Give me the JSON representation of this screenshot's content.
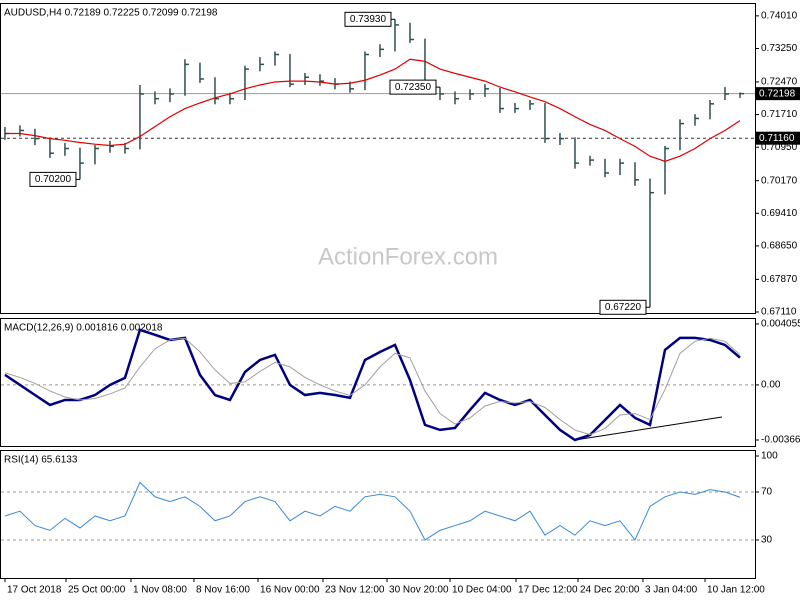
{
  "chart_data": [
    {
      "type": "ohlc",
      "title": "AUDUSD,H4  0.72189 0.72225 0.72099 0.72198",
      "watermark": "ActionForex.com",
      "color": "#2f4f4f",
      "xlim": [
        -0.33,
        50
      ],
      "ylim": [
        0.67087,
        0.7431
      ],
      "yticks": [
        {
          "value": 0.7401,
          "label": "0.74010"
        },
        {
          "value": 0.7325,
          "label": "0.73250"
        },
        {
          "value": 0.7247,
          "label": "0.72470"
        },
        {
          "value": 0.7171,
          "label": "0.71710"
        },
        {
          "value": 0.7095,
          "label": "0.70950"
        },
        {
          "value": 0.7017,
          "label": "0.70170"
        },
        {
          "value": 0.6941,
          "label": "0.69410"
        },
        {
          "value": 0.6865,
          "label": "0.68650"
        },
        {
          "value": 0.6787,
          "label": "0.67870"
        },
        {
          "value": 0.6711,
          "label": "0.67110"
        }
      ],
      "high": [
        0.7142,
        0.7146,
        0.7138,
        0.7118,
        0.7105,
        0.7094,
        0.71,
        0.711,
        0.7105,
        0.724,
        0.7225,
        0.7232,
        0.73,
        0.7292,
        0.7258,
        0.7222,
        0.7285,
        0.7305,
        0.7318,
        0.7312,
        0.7268,
        0.7265,
        0.7256,
        0.7248,
        0.7318,
        0.7335,
        0.7393,
        0.7385,
        0.7348,
        0.7235,
        0.7225,
        0.723,
        0.7242,
        0.7233,
        0.7198,
        0.7205,
        0.7198,
        0.7128,
        0.7118,
        0.7075,
        0.7068,
        0.7068,
        0.706,
        0.7022,
        0.7098,
        0.716,
        0.7172,
        0.7205,
        0.7235,
        0.72225
      ],
      "low": [
        0.7112,
        0.712,
        0.71,
        0.707,
        0.7075,
        0.702,
        0.7055,
        0.7082,
        0.708,
        0.709,
        0.7195,
        0.72,
        0.7215,
        0.7245,
        0.7195,
        0.7195,
        0.7205,
        0.7272,
        0.7285,
        0.7235,
        0.724,
        0.7238,
        0.723,
        0.7222,
        0.7228,
        0.7305,
        0.7318,
        0.7338,
        0.722,
        0.7205,
        0.7195,
        0.7205,
        0.7212,
        0.7175,
        0.7175,
        0.7182,
        0.7105,
        0.71,
        0.7045,
        0.7052,
        0.7025,
        0.703,
        0.7005,
        0.6722,
        0.6985,
        0.7088,
        0.7145,
        0.716,
        0.7205,
        0.72099
      ],
      "close": [
        0.7127,
        0.7134,
        0.7115,
        0.7081,
        0.7092,
        0.7058,
        0.7092,
        0.7097,
        0.7092,
        0.7219,
        0.7208,
        0.7219,
        0.7288,
        0.7254,
        0.7208,
        0.7208,
        0.7277,
        0.7288,
        0.7311,
        0.7242,
        0.7258,
        0.7249,
        0.7242,
        0.7231,
        0.7311,
        0.7323,
        0.738,
        0.7346,
        0.7231,
        0.7219,
        0.7208,
        0.7219,
        0.7231,
        0.7185,
        0.7185,
        0.7196,
        0.7115,
        0.7115,
        0.7058,
        0.7065,
        0.7035,
        0.7058,
        0.7019,
        0.6989,
        0.7092,
        0.715,
        0.7162,
        0.7196,
        0.7219,
        0.72198
      ],
      "overlay": {
        "color": "#e00000",
        "values": [
          0.7127,
          0.7127,
          0.7122,
          0.7115,
          0.7111,
          0.7106,
          0.7102,
          0.7099,
          0.7102,
          0.712,
          0.7143,
          0.7166,
          0.7185,
          0.7198,
          0.721,
          0.7219,
          0.7231,
          0.724,
          0.7247,
          0.7249,
          0.7249,
          0.7247,
          0.7242,
          0.7244,
          0.7251,
          0.7263,
          0.7277,
          0.73,
          0.7295,
          0.7277,
          0.7267,
          0.7258,
          0.7249,
          0.7235,
          0.7224,
          0.7212,
          0.7201,
          0.7185,
          0.7166,
          0.7148,
          0.7134,
          0.7115,
          0.7097,
          0.7074,
          0.7062,
          0.7074,
          0.7092,
          0.7115,
          0.7134,
          0.7157
        ]
      },
      "levels": [
        {
          "value": 0.72198,
          "label": "0.72198",
          "style": "solid"
        },
        {
          "value": 0.7116,
          "label": "0.71160",
          "style": "dashed"
        }
      ],
      "annotations": [
        {
          "value": 0.7393,
          "label": "0.73930"
        },
        {
          "value": 0.7235,
          "label": "0.72350"
        },
        {
          "value": 0.702,
          "label": "0.70200"
        },
        {
          "value": 0.6722,
          "label": "0.67220"
        }
      ]
    },
    {
      "type": "line",
      "title": "MACD(12,26,9) 0.001816 0.002018",
      "xlim": [
        -0.33,
        50
      ],
      "ylim": [
        -0.00406,
        0.00445
      ],
      "yticks": [
        0.004055,
        {
          "value": 0,
          "label": "0.00"
        },
        -0.003662
      ],
      "levels": [
        0
      ],
      "series": [
        {
          "color": "#000080",
          "width": 2.5,
          "values": [
            0.00067,
            0,
            -0.00067,
            -0.00133,
            -0.001,
            -0.001,
            -0.00067,
            0,
            0.00047,
            0.00366,
            0.00333,
            0.00299,
            0.00313,
            0.00067,
            -0.00067,
            -0.001,
            0.00086,
            0.00166,
            0.002,
            0,
            -0.00067,
            -0.00053,
            -0.00067,
            -0.00086,
            0.00166,
            0.00219,
            0.00266,
            0.00033,
            -0.00266,
            -0.00299,
            -0.00286,
            -0.00166,
            -0.00053,
            -0.001,
            -0.00133,
            -0.001,
            -0.002,
            -0.00299,
            -0.00366,
            -0.00333,
            -0.00233,
            -0.00133,
            -0.00219,
            -0.00266,
            0.00233,
            0.00313,
            0.00313,
            0.00299,
            0.00266,
            0.001816
          ]
        },
        {
          "color": "#a0a0a0",
          "width": 1,
          "values": [
            0.0008,
            0.0005,
            0.0001,
            -0.0004,
            -0.0008,
            -0.001,
            -0.0009,
            -0.0006,
            -0.0002,
            0.0012,
            0.0024,
            0.003,
            0.0031,
            0.0022,
            0.001,
            0.0001,
            0.0002,
            0.0009,
            0.0015,
            0.0012,
            0.0005,
            0,
            -0.0004,
            -0.0007,
            0,
            0.0012,
            0.0021,
            0.0018,
            -0.0004,
            -0.0019,
            -0.0026,
            -0.0022,
            -0.0014,
            -0.0011,
            -0.0012,
            -0.0011,
            -0.0015,
            -0.0023,
            -0.003,
            -0.0033,
            -0.0029,
            -0.002,
            -0.0019,
            -0.0023,
            -0.0003,
            0.0021,
            0.0029,
            0.0031,
            0.0029,
            0.002018
          ]
        }
      ]
    },
    {
      "type": "line",
      "title": "RSI(14) 65.6133",
      "xlim": [
        -0.33,
        50
      ],
      "ylim": [
        -1.7,
        105
      ],
      "yticks": [
        100,
        70,
        30
      ],
      "levels": [
        70,
        30
      ],
      "xticks": [
        {
          "value": 0,
          "label": "17 Oct 2018"
        },
        {
          "value": 4.07,
          "label": "25 Oct 00:00"
        },
        {
          "value": 8.4,
          "label": "1 Nov 08:00"
        },
        {
          "value": 12.6,
          "label": "8 Nov 16:00"
        },
        {
          "value": 16.87,
          "label": "16 Nov 00:00"
        },
        {
          "value": 21.2,
          "label": "23 Nov 12:00"
        },
        {
          "value": 25.47,
          "label": "30 Nov 20:00"
        },
        {
          "value": 29.67,
          "label": "10 Dec 04:00"
        },
        {
          "value": 34.07,
          "label": "17 Dec 12:00"
        },
        {
          "value": 38.2,
          "label": "24 Dec 20:00"
        },
        {
          "value": 42.53,
          "label": "3 Jan 04:00"
        },
        {
          "value": 46.67,
          "label": "10 Jan 12:00"
        }
      ],
      "series": [
        {
          "color": "#3a8ad6",
          "width": 1,
          "values": [
            50,
            54,
            42,
            38,
            48,
            40,
            50,
            46,
            50,
            78,
            66,
            62,
            66,
            58,
            46,
            50,
            62,
            66,
            62,
            46,
            54,
            50,
            58,
            54,
            66,
            68,
            66,
            54,
            30,
            38,
            42,
            46,
            54,
            50,
            46,
            54,
            34,
            42,
            34,
            46,
            42,
            46,
            30,
            58,
            66,
            70,
            68,
            72,
            70,
            65.6133
          ]
        }
      ]
    }
  ]
}
